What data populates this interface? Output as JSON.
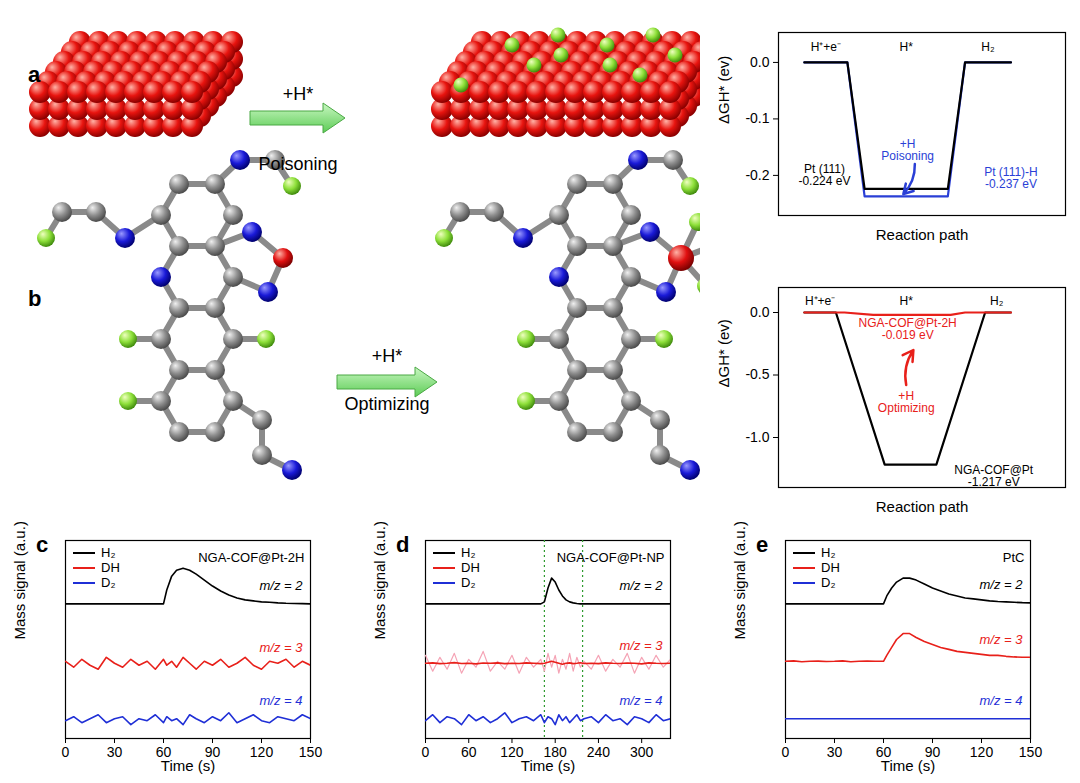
{
  "illustrations": [
    {
      "panel": "a",
      "arrow_label_top": "+H*",
      "arrow_label_bottom": "Poisoning"
    },
    {
      "panel": "b",
      "arrow_label_top": "+H*",
      "arrow_label_bottom": "Optimizing"
    }
  ],
  "chart_data": [
    {
      "type": "line",
      "xlabel": "Reaction path",
      "ylabel": "ΔGH* (ev)",
      "xlim": [
        0,
        10
      ],
      "ylim": [
        -0.271,
        0.053
      ],
      "yticks": [
        {
          "value": -0.2,
          "label": "-0.2"
        },
        {
          "value": -0.1,
          "label": "-0.1"
        },
        {
          "value": 0,
          "label": "0.0"
        }
      ],
      "tick_labels": "y",
      "series": [
        {
          "color": "#2a3fd6",
          "x": [
            0.9,
            2.4,
            3.0,
            5.9,
            6.5,
            8.1
          ],
          "values": [
            0,
            0,
            -0.237,
            -0.237,
            0,
            0
          ]
        },
        {
          "color": "#000000",
          "x": [
            0.9,
            2.4,
            3.0,
            5.9,
            6.5,
            8.1
          ],
          "values": [
            0,
            0,
            -0.224,
            -0.224,
            0,
            0
          ]
        }
      ],
      "annotations": [
        {
          "text": "H⁺+e⁻",
          "color": "#000000"
        },
        {
          "text": "H*",
          "color": "#000000"
        },
        {
          "text": "H₂",
          "color": "#000000"
        },
        {
          "text": "Pt (111)\n-0.224 eV",
          "color": "#000000"
        },
        {
          "text": "Pt (111)-H\n-0.237 eV",
          "color": "#2a3fd6"
        },
        {
          "text": "+H\nPoisoning",
          "color": "#2a3fd6"
        }
      ]
    },
    {
      "type": "line",
      "xlabel": "Reaction path",
      "ylabel": "ΔGH* (ev)",
      "xlim": [
        0,
        10
      ],
      "ylim": [
        -1.4,
        0.2
      ],
      "yticks": [
        {
          "value": -1,
          "label": "-1.0"
        },
        {
          "value": -0.5,
          "label": "-0.5"
        },
        {
          "value": 0,
          "label": "0.0"
        }
      ],
      "tick_labels": "y",
      "series": [
        {
          "color": "#000000",
          "x": [
            0.9,
            2.0,
            3.7,
            5.5,
            7.2,
            8.1
          ],
          "values": [
            0,
            0,
            -1.217,
            -1.217,
            0,
            0
          ]
        },
        {
          "color": "#e8201a",
          "x": [
            0.9,
            2.3,
            3.3,
            6.0,
            6.5,
            8.1
          ],
          "values": [
            0,
            0,
            -0.019,
            -0.019,
            0,
            0
          ]
        }
      ],
      "annotations": [
        {
          "text": "H⁺+e⁻",
          "color": "#000000"
        },
        {
          "text": "H*",
          "color": "#000000"
        },
        {
          "text": "H₂",
          "color": "#000000"
        },
        {
          "text": "NGA-COF@Pt-2H\n-0.019 eV",
          "color": "#e8201a"
        },
        {
          "text": "+H\nOptimizing",
          "color": "#e8201a"
        },
        {
          "text": "NGA-COF@Pt\n-1.217 eV",
          "color": "#000000"
        }
      ]
    },
    {
      "type": "line",
      "panel": "c",
      "title": "NGA-COF@Pt-2H",
      "xlabel": "Time (s)",
      "ylabel": "Mass signal (a.u.)",
      "xlim": [
        0,
        150
      ],
      "xticks": [
        0,
        30,
        60,
        90,
        120,
        150
      ],
      "ylim": [
        0,
        10
      ],
      "tick_labels": "x",
      "legend": "top-left",
      "x": [
        0,
        5,
        10,
        15,
        20,
        25,
        30,
        35,
        40,
        45,
        50,
        55,
        60,
        62,
        65,
        68,
        72,
        76,
        80,
        85,
        90,
        95,
        100,
        105,
        110,
        115,
        120,
        125,
        130,
        135,
        140,
        145,
        150
      ],
      "series": [
        {
          "name": "H₂",
          "color": "#000000",
          "values": [
            6.8,
            6.8,
            6.8,
            6.8,
            6.8,
            6.8,
            6.8,
            6.8,
            6.8,
            6.8,
            6.8,
            6.8,
            6.8,
            7.5,
            8.2,
            8.5,
            8.6,
            8.5,
            8.3,
            8.0,
            7.7,
            7.45,
            7.25,
            7.1,
            7.0,
            6.95,
            6.9,
            6.88,
            6.85,
            6.83,
            6.82,
            6.81,
            6.8
          ]
        },
        {
          "name": "DH",
          "color": "#e8201a",
          "values": [
            3.9,
            3.6,
            4.0,
            3.7,
            3.5,
            4.1,
            3.8,
            3.6,
            4.0,
            3.7,
            3.9,
            3.5,
            4.0,
            3.7,
            3.9,
            3.6,
            4.1,
            3.8,
            3.5,
            3.9,
            3.7,
            4.0,
            3.6,
            3.8,
            4.1,
            3.7,
            3.5,
            3.9,
            3.8,
            4.0,
            3.6,
            3.9,
            3.7
          ]
        },
        {
          "name": "D₂",
          "color": "#1f2fd6",
          "values": [
            0.9,
            1.1,
            0.8,
            1.0,
            1.2,
            0.8,
            1.0,
            1.1,
            0.7,
            1.0,
            0.9,
            1.2,
            0.8,
            1.1,
            0.9,
            1.0,
            0.7,
            1.2,
            1.0,
            0.8,
            1.1,
            0.9,
            1.3,
            0.8,
            1.0,
            1.2,
            0.9,
            0.8,
            1.1,
            1.0,
            0.9,
            1.2,
            1.0
          ]
        }
      ],
      "annotations": [
        {
          "text": "m/z = 2",
          "color": "#000000"
        },
        {
          "text": "m/z = 3",
          "color": "#e8201a"
        },
        {
          "text": "m/z = 4",
          "color": "#1f2fd6"
        }
      ]
    },
    {
      "type": "line",
      "panel": "d",
      "title": "NGA-COF@Pt-NP",
      "xlabel": "Time (s)",
      "ylabel": "Mass signal (a.u.)",
      "xlim": [
        0,
        340
      ],
      "xticks": [
        0,
        60,
        120,
        180,
        240,
        300
      ],
      "ylim": [
        0,
        10
      ],
      "tick_labels": "x",
      "legend": "top-left",
      "reference_lines": [
        165,
        218
      ],
      "x": [
        0,
        10,
        20,
        30,
        40,
        50,
        60,
        70,
        80,
        90,
        100,
        110,
        120,
        130,
        140,
        150,
        160,
        165,
        170,
        175,
        180,
        185,
        190,
        195,
        200,
        205,
        210,
        215,
        220,
        230,
        240,
        250,
        260,
        270,
        280,
        290,
        300,
        310,
        320,
        330,
        340
      ],
      "series": [
        {
          "name": "H₂",
          "color": "#000000",
          "values": [
            6.8,
            6.8,
            6.8,
            6.8,
            6.8,
            6.8,
            6.8,
            6.8,
            6.8,
            6.8,
            6.8,
            6.8,
            6.8,
            6.8,
            6.8,
            6.8,
            6.8,
            6.9,
            7.6,
            8.1,
            7.9,
            7.5,
            7.2,
            7.0,
            6.9,
            6.85,
            6.82,
            6.8,
            6.8,
            6.8,
            6.8,
            6.8,
            6.8,
            6.8,
            6.8,
            6.8,
            6.8,
            6.8,
            6.8,
            6.8,
            6.8
          ]
        },
        {
          "name": "DH",
          "color": "#e8201a",
          "values": [
            3.8,
            3.82,
            3.78,
            3.8,
            3.83,
            3.79,
            3.8,
            3.77,
            3.81,
            3.8,
            3.82,
            3.78,
            3.8,
            3.79,
            3.82,
            3.8,
            3.78,
            3.8,
            3.85,
            3.9,
            3.85,
            3.8,
            3.75,
            3.8,
            3.82,
            3.78,
            3.8,
            3.83,
            3.79,
            3.8,
            3.78,
            3.82,
            3.8,
            3.79,
            3.81,
            3.8,
            3.77,
            3.82,
            3.8,
            3.79,
            3.8
          ],
          "raw_values": [
            4.2,
            3.4,
            4.1,
            3.5,
            4.3,
            3.3,
            4.0,
            3.6,
            4.4,
            3.4,
            3.9,
            3.5,
            4.2,
            3.3,
            4.1,
            3.6,
            4.0,
            3.4,
            4.3,
            3.6,
            4.2,
            3.3,
            4.0,
            3.5,
            4.3,
            3.4,
            4.1,
            3.6,
            3.9,
            3.5,
            4.2,
            3.4,
            4.0,
            3.6,
            4.3,
            3.3,
            4.1,
            3.5,
            4.2,
            3.6,
            4.0
          ]
        },
        {
          "name": "D₂",
          "color": "#1f2fd6",
          "values": [
            0.9,
            1.2,
            0.8,
            1.1,
            1.0,
            0.7,
            1.2,
            0.9,
            1.1,
            0.8,
            1.0,
            1.3,
            0.8,
            1.0,
            1.1,
            0.9,
            1.2,
            0.8,
            1.1,
            1.0,
            0.7,
            1.2,
            0.9,
            1.1,
            0.8,
            1.0,
            1.2,
            0.9,
            1.0,
            1.1,
            0.8,
            1.2,
            0.9,
            1.0,
            0.7,
            1.1,
            1.0,
            0.8,
            1.2,
            0.9,
            1.0
          ]
        }
      ],
      "annotations": [
        {
          "text": "m/z = 2",
          "color": "#000000"
        },
        {
          "text": "m/z = 3",
          "color": "#e8201a"
        },
        {
          "text": "m/z = 4",
          "color": "#1f2fd6"
        }
      ]
    },
    {
      "type": "line",
      "panel": "e",
      "title": "PtC",
      "xlabel": "Time (s)",
      "ylabel": "Mass signal (a.u.)",
      "xlim": [
        0,
        150
      ],
      "xticks": [
        0,
        30,
        60,
        90,
        120,
        150
      ],
      "ylim": [
        0,
        10
      ],
      "tick_labels": "x",
      "legend": "top-left",
      "x": [
        0,
        5,
        10,
        15,
        20,
        25,
        30,
        35,
        40,
        45,
        50,
        55,
        60,
        62,
        65,
        68,
        72,
        76,
        80,
        85,
        90,
        95,
        100,
        105,
        110,
        115,
        120,
        125,
        130,
        135,
        140,
        145,
        150
      ],
      "series": [
        {
          "name": "H₂",
          "color": "#000000",
          "values": [
            6.8,
            6.8,
            6.8,
            6.8,
            6.8,
            6.8,
            6.8,
            6.8,
            6.8,
            6.8,
            6.8,
            6.8,
            6.8,
            7.2,
            7.6,
            7.9,
            8.1,
            8.1,
            8.0,
            7.8,
            7.6,
            7.45,
            7.3,
            7.2,
            7.1,
            7.05,
            7.0,
            6.95,
            6.92,
            6.9,
            6.88,
            6.86,
            6.85
          ]
        },
        {
          "name": "DH",
          "color": "#e8201a",
          "values": [
            3.9,
            3.92,
            3.88,
            3.9,
            3.91,
            3.89,
            3.9,
            3.92,
            3.88,
            3.9,
            3.91,
            3.9,
            3.9,
            4.2,
            4.6,
            5.0,
            5.3,
            5.3,
            5.1,
            4.9,
            4.75,
            4.6,
            4.5,
            4.4,
            4.35,
            4.3,
            4.25,
            4.2,
            4.2,
            4.15,
            4.12,
            4.1,
            4.1
          ]
        },
        {
          "name": "D₂",
          "color": "#1f2fd6",
          "values": [
            1.0,
            1.0,
            1.0,
            1.0,
            1.0,
            1.0,
            1.0,
            1.0,
            1.0,
            1.0,
            1.0,
            1.0,
            1.0,
            1.0,
            1.0,
            1.0,
            1.0,
            1.0,
            1.0,
            1.0,
            1.0,
            1.0,
            1.0,
            1.0,
            1.0,
            1.0,
            1.0,
            1.0,
            1.0,
            1.0,
            1.0,
            1.0,
            1.0
          ]
        }
      ],
      "annotations": [
        {
          "text": "m/z = 2",
          "color": "#000000"
        },
        {
          "text": "m/z = 3",
          "color": "#e8201a"
        },
        {
          "text": "m/z = 4",
          "color": "#1f2fd6"
        }
      ]
    }
  ]
}
